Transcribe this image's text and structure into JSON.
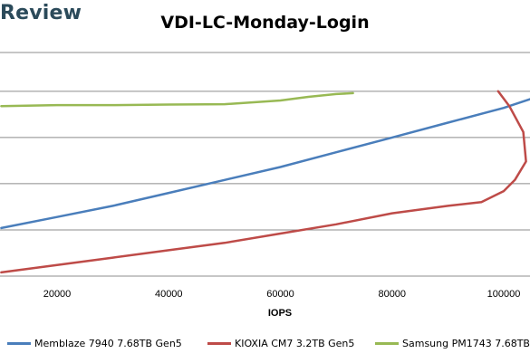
{
  "brand": {
    "text": "Review"
  },
  "chart_data": {
    "type": "line",
    "title": "VDI-LC-Monday-Login",
    "xlabel": "IOPS",
    "ylabel": "",
    "xlim": [
      10000,
      105000
    ],
    "ylim": [
      0,
      1.2
    ],
    "xticks": [
      "20000",
      "40000",
      "60000",
      "80000",
      "100000"
    ],
    "grid": true,
    "legend_position": "bottom",
    "series": [
      {
        "name": "Memblaze 7940 7.68TB Gen5",
        "color": "#4a7ebb",
        "x": [
          10000,
          20000,
          30000,
          40000,
          50000,
          60000,
          70000,
          80000,
          90000,
          100000,
          105000
        ],
        "y": [
          0.26,
          0.32,
          0.38,
          0.45,
          0.52,
          0.59,
          0.67,
          0.75,
          0.83,
          0.91,
          0.96
        ]
      },
      {
        "name": "KIOXIA CM7 3.2TB Gen5",
        "color": "#be4b48",
        "x": [
          10000,
          20000,
          30000,
          40000,
          50000,
          60000,
          70000,
          80000,
          90000,
          96000,
          100000,
          102000,
          104000,
          103500,
          101000,
          99000
        ],
        "y": [
          0.02,
          0.06,
          0.1,
          0.14,
          0.18,
          0.23,
          0.28,
          0.34,
          0.38,
          0.4,
          0.46,
          0.52,
          0.62,
          0.78,
          0.92,
          1.0
        ]
      },
      {
        "name": "Samsung PM1743 7.68TB",
        "color": "#98b954",
        "x": [
          10000,
          20000,
          30000,
          40000,
          50000,
          60000,
          65000,
          70000,
          73000
        ],
        "y": [
          0.92,
          0.925,
          0.925,
          0.928,
          0.93,
          0.95,
          0.97,
          0.985,
          0.99
        ]
      }
    ]
  }
}
